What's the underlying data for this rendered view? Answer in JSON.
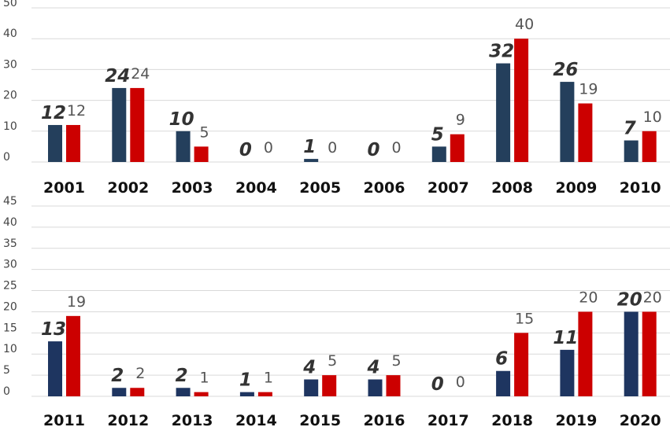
{
  "colors": {
    "series_a": "#243f5c",
    "series_b": "#cc0000",
    "grid": "#d9d9d9"
  },
  "chart_data": [
    {
      "type": "bar",
      "categories": [
        "2001",
        "2002",
        "2003",
        "2004",
        "2005",
        "2006",
        "2007",
        "2008",
        "2009",
        "2010"
      ],
      "series": [
        {
          "values": [
            12,
            24,
            10,
            0,
            1,
            0,
            5,
            32,
            26,
            7
          ]
        },
        {
          "values": [
            12,
            24,
            5,
            0,
            0,
            0,
            9,
            40,
            19,
            10
          ]
        }
      ],
      "yticks": [
        "0",
        "10",
        "20",
        "30",
        "40",
        "50"
      ],
      "ylim": [
        0,
        50
      ],
      "grid": true,
      "legend": "none"
    },
    {
      "type": "bar",
      "categories": [
        "2011",
        "2012",
        "2013",
        "2014",
        "2015",
        "2016",
        "2017",
        "2018",
        "2019",
        "2020"
      ],
      "series": [
        {
          "values": [
            13,
            2,
            2,
            1,
            4,
            4,
            0,
            6,
            11,
            20
          ]
        },
        {
          "values": [
            19,
            2,
            1,
            1,
            5,
            5,
            0,
            15,
            20,
            20
          ]
        }
      ],
      "yticks": [
        "0",
        "5",
        "10",
        "15",
        "20",
        "25",
        "30",
        "35",
        "40",
        "45"
      ],
      "ylim": [
        0,
        45
      ],
      "grid": true,
      "legend": "none"
    }
  ]
}
